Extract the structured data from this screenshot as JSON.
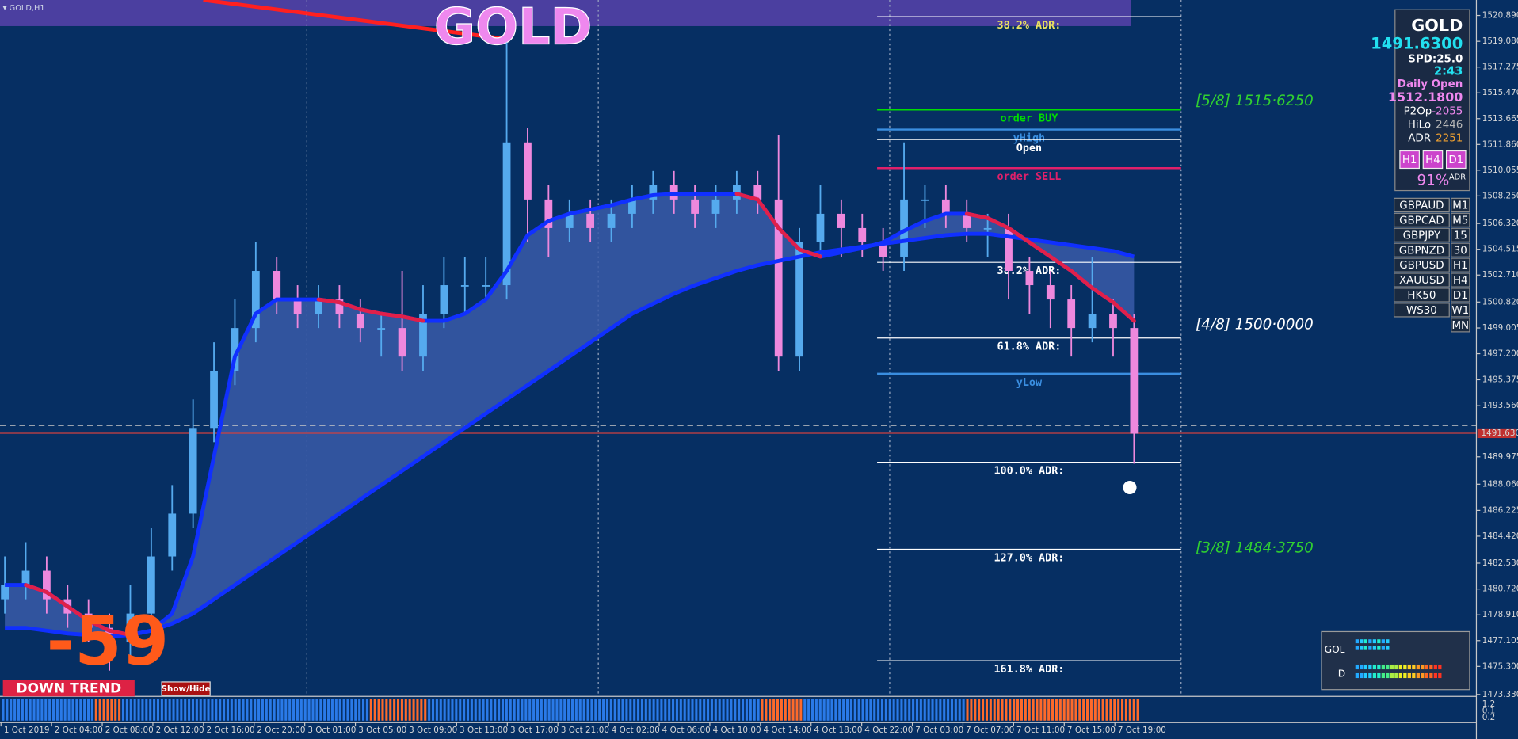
{
  "window": {
    "caption": "GOLD,H1",
    "watermark": "GOLD"
  },
  "chart_data": {
    "type": "candlestick",
    "candles": [
      [
        1480,
        1483,
        1479,
        1481
      ],
      [
        1481,
        1484,
        1480,
        1482
      ],
      [
        1482,
        1483,
        1479,
        1480
      ],
      [
        1480,
        1481,
        1478,
        1479
      ],
      [
        1479,
        1480,
        1477,
        1478
      ],
      [
        1478,
        1479,
        1475,
        1477
      ],
      [
        1477,
        1481,
        1476,
        1479
      ],
      [
        1479,
        1485,
        1478,
        1483
      ],
      [
        1483,
        1488,
        1482,
        1486
      ],
      [
        1486,
        1494,
        1485,
        1492
      ],
      [
        1492,
        1498,
        1491,
        1496
      ],
      [
        1496,
        1501,
        1495,
        1499
      ],
      [
        1499,
        1505,
        1498,
        1503
      ],
      [
        1503,
        1504,
        1500,
        1501
      ],
      [
        1501,
        1502,
        1499,
        1500
      ],
      [
        1500,
        1502,
        1499,
        1501
      ],
      [
        1501,
        1502,
        1499,
        1500
      ],
      [
        1500,
        1501,
        1498,
        1499
      ],
      [
        1499,
        1500,
        1497,
        1499
      ],
      [
        1499,
        1503,
        1496,
        1497
      ],
      [
        1497,
        1502,
        1496,
        1500
      ],
      [
        1500,
        1504,
        1499,
        1502
      ],
      [
        1502,
        1504,
        1500,
        1502
      ],
      [
        1502,
        1504,
        1501,
        1502
      ],
      [
        1502,
        1519,
        1501,
        1512
      ],
      [
        1512,
        1513,
        1505,
        1508
      ],
      [
        1508,
        1509,
        1504,
        1506
      ],
      [
        1506,
        1508,
        1505,
        1507
      ],
      [
        1507,
        1508,
        1505,
        1506
      ],
      [
        1506,
        1508,
        1505,
        1507
      ],
      [
        1507,
        1509,
        1506,
        1508
      ],
      [
        1508,
        1510,
        1507,
        1509
      ],
      [
        1509,
        1510,
        1507,
        1508
      ],
      [
        1508,
        1509,
        1506,
        1507
      ],
      [
        1507,
        1509,
        1506,
        1508
      ],
      [
        1508,
        1510,
        1507,
        1509
      ],
      [
        1509,
        1510,
        1507,
        1508
      ],
      [
        1508,
        1512.5,
        1496,
        1497
      ],
      [
        1497,
        1506,
        1496,
        1505
      ],
      [
        1505,
        1509,
        1504,
        1507
      ],
      [
        1507,
        1508,
        1504,
        1506
      ],
      [
        1506,
        1507,
        1504,
        1505
      ],
      [
        1505,
        1506,
        1503,
        1504
      ],
      [
        1504,
        1512,
        1503,
        1508
      ],
      [
        1508,
        1509,
        1506,
        1508
      ],
      [
        1508,
        1509,
        1506,
        1507
      ],
      [
        1507,
        1508,
        1505,
        1506
      ],
      [
        1506,
        1507,
        1504,
        1506
      ],
      [
        1506,
        1507,
        1501,
        1503
      ],
      [
        1503,
        1504,
        1500,
        1502
      ],
      [
        1502,
        1503,
        1499,
        1501
      ],
      [
        1501,
        1502,
        1497,
        1499
      ],
      [
        1499,
        1504,
        1498,
        1500
      ],
      [
        1500,
        1501,
        1497,
        1499
      ],
      [
        1499,
        1500,
        1489.5,
        1491.6
      ]
    ],
    "up_color": "#55aaee",
    "down_color": "#ee88dd",
    "ma_fast": [
      1481,
      1481,
      1480.5,
      1479.5,
      1478.5,
      1477.8,
      1477.5,
      1477.8,
      1479,
      1483,
      1490,
      1497,
      1500,
      1501,
      1501,
      1501,
      1500.8,
      1500.3,
      1500,
      1499.8,
      1499.5,
      1499.5,
      1500,
      1501,
      1503,
      1505.5,
      1506.5,
      1507,
      1507.3,
      1507.6,
      1508,
      1508.3,
      1508.4,
      1508.4,
      1508.4,
      1508.4,
      1508,
      1506,
      1504.5,
      1504,
      1504.3,
      1504.6,
      1505,
      1505.8,
      1506.5,
      1507,
      1507,
      1506.7,
      1506,
      1505,
      1504,
      1503,
      1501.8,
      1500.8,
      1499.5
    ],
    "ma_slow": [
      1478,
      1478,
      1477.8,
      1477.6,
      1477.5,
      1477.4,
      1477.5,
      1477.8,
      1478.3,
      1479,
      1480,
      1481,
      1482,
      1483,
      1484,
      1485,
      1486,
      1487,
      1488,
      1489,
      1490,
      1491,
      1492,
      1493,
      1494,
      1495,
      1496,
      1497,
      1498,
      1499,
      1500,
      1500.7,
      1501.4,
      1502,
      1502.5,
      1503,
      1503.4,
      1503.7,
      1504,
      1504.3,
      1504.5,
      1504.7,
      1504.9,
      1505.1,
      1505.3,
      1505.5,
      1505.6,
      1505.6,
      1505.4,
      1505.2,
      1505,
      1504.8,
      1504.6,
      1504.4,
      1504
    ],
    "ylim": [
      1473.33,
      1520.89
    ],
    "yticks": [
      {
        "value": 1520.89,
        "label": "1520.890"
      },
      {
        "value": 1519.08,
        "label": "1519.080"
      },
      {
        "value": 1517.275,
        "label": "1517.275"
      },
      {
        "value": 1515.47,
        "label": "1515.470"
      },
      {
        "value": 1513.665,
        "label": "1513.665"
      },
      {
        "value": 1511.86,
        "label": "1511.860"
      },
      {
        "value": 1510.055,
        "label": "1510.055"
      },
      {
        "value": 1508.25,
        "label": "1508.250"
      },
      {
        "value": 1506.32,
        "label": "1506.320"
      },
      {
        "value": 1504.515,
        "label": "1504.515"
      },
      {
        "value": 1502.71,
        "label": "1502.710"
      },
      {
        "value": 1500.82,
        "label": "1500.820"
      },
      {
        "value": 1499.005,
        "label": "1499.005"
      },
      {
        "value": 1497.2,
        "label": "1497.200"
      },
      {
        "value": 1495.375,
        "label": "1495.375"
      },
      {
        "value": 1493.56,
        "label": "1493.560"
      },
      {
        "value": 1489.975,
        "label": "1489.975"
      },
      {
        "value": 1488.06,
        "label": "1488.060"
      },
      {
        "value": 1486.225,
        "label": "1486.225"
      },
      {
        "value": 1484.42,
        "label": "1484.420"
      },
      {
        "value": 1482.53,
        "label": "1482.530"
      },
      {
        "value": 1480.72,
        "label": "1480.720"
      },
      {
        "value": 1478.91,
        "label": "1478.910"
      },
      {
        "value": 1477.105,
        "label": "1477.105"
      },
      {
        "value": 1475.3,
        "label": "1475.300"
      },
      {
        "value": 1473.33,
        "label": "1473.330"
      }
    ],
    "current_price": {
      "value": 1491.63,
      "label": "1491.630"
    },
    "time_labels": [
      "1 Oct 2019",
      "2 Oct 04:00",
      "2 Oct 08:00",
      "2 Oct 12:00",
      "2 Oct 16:00",
      "2 Oct 20:00",
      "3 Oct 01:00",
      "3 Oct 05:00",
      "3 Oct 09:00",
      "3 Oct 13:00",
      "3 Oct 17:00",
      "3 Oct 21:00",
      "4 Oct 02:00",
      "4 Oct 06:00",
      "4 Oct 10:00",
      "4 Oct 14:00",
      "4 Oct 18:00",
      "4 Oct 22:00",
      "7 Oct 03:00",
      "7 Oct 07:00",
      "7 Oct 11:00",
      "7 Oct 15:00",
      "7 Oct 19:00"
    ],
    "levels": [
      {
        "label": "38.2% ADR:",
        "price": 1520.8,
        "color": "#ffffff",
        "text_color": "#e8e060"
      },
      {
        "label": "order BUY",
        "price": 1514.3,
        "color": "#00dd00",
        "text_color": "#00dd00"
      },
      {
        "label": "yHigh",
        "price": 1512.9,
        "color": "#3a8ee0",
        "text_color": "#3a8ee0"
      },
      {
        "label": "Open",
        "price": 1512.2,
        "color": "#ffffff",
        "text_color": "#ffffff"
      },
      {
        "label": "order SELL",
        "price": 1510.2,
        "color": "#e0206a",
        "text_color": "#e0206a"
      },
      {
        "label": "38.2% ADR:",
        "price": 1503.6,
        "color": "#ffffff",
        "text_color": "#ffffff"
      },
      {
        "label": "61.8% ADR:",
        "price": 1498.3,
        "color": "#ffffff",
        "text_color": "#ffffff"
      },
      {
        "label": "yLow",
        "price": 1495.8,
        "color": "#3a8ee0",
        "text_color": "#3a8ee0"
      },
      {
        "label": "100.0% ADR:",
        "price": 1489.6,
        "color": "#ffffff",
        "text_color": "#ffffff"
      },
      {
        "label": "127.0% ADR:",
        "price": 1483.5,
        "color": "#ffffff",
        "text_color": "#ffffff"
      },
      {
        "label": "161.8% ADR:",
        "price": 1475.7,
        "color": "#ffffff",
        "text_color": "#ffffff"
      }
    ],
    "murrey": [
      {
        "label": "[5/8]   1515·6250",
        "color": "#30d030"
      },
      {
        "label": "[4/8]   1500·0000",
        "color": "#ffffff"
      },
      {
        "label": "[3/8]   1484·3750",
        "color": "#30d030"
      }
    ],
    "indicator_labels": [
      "1.2",
      "0.1",
      "0.2"
    ]
  },
  "panel": {
    "symbol": "GOLD",
    "bid": "1491.6300",
    "spread": "SPD:25.0",
    "timer": "2:43",
    "daily_open_label": "Daily Open",
    "daily_open": "1512.1800",
    "p2op_label": "P2Op",
    "p2op_value": "-2055",
    "hilo_label": "HiLo",
    "hilo_value": "2446",
    "adr_label": "ADR",
    "adr_value": "2251",
    "buttons": [
      "H1",
      "H4",
      "D1"
    ],
    "adr_percent": "91%",
    "adr_percent_unit": "ADR"
  },
  "symbols": [
    {
      "name": "GBPAUD",
      "tf": "M1"
    },
    {
      "name": "GBPCAD",
      "tf": "M5"
    },
    {
      "name": "GBPJPY",
      "tf": "15"
    },
    {
      "name": "GBPNZD",
      "tf": "30"
    },
    {
      "name": "GBPUSD",
      "tf": "H1"
    },
    {
      "name": "XAUUSD",
      "tf": "H4"
    },
    {
      "name": "HK50",
      "tf": "D1"
    },
    {
      "name": "WS30",
      "tf": "W1"
    },
    {
      "name": null,
      "tf": "MN"
    }
  ],
  "strength": {
    "row1": "GOL",
    "row2": "D"
  },
  "status": {
    "pips": "-59",
    "trend": "DOWN TREND",
    "toggle": "Show/Hide"
  }
}
